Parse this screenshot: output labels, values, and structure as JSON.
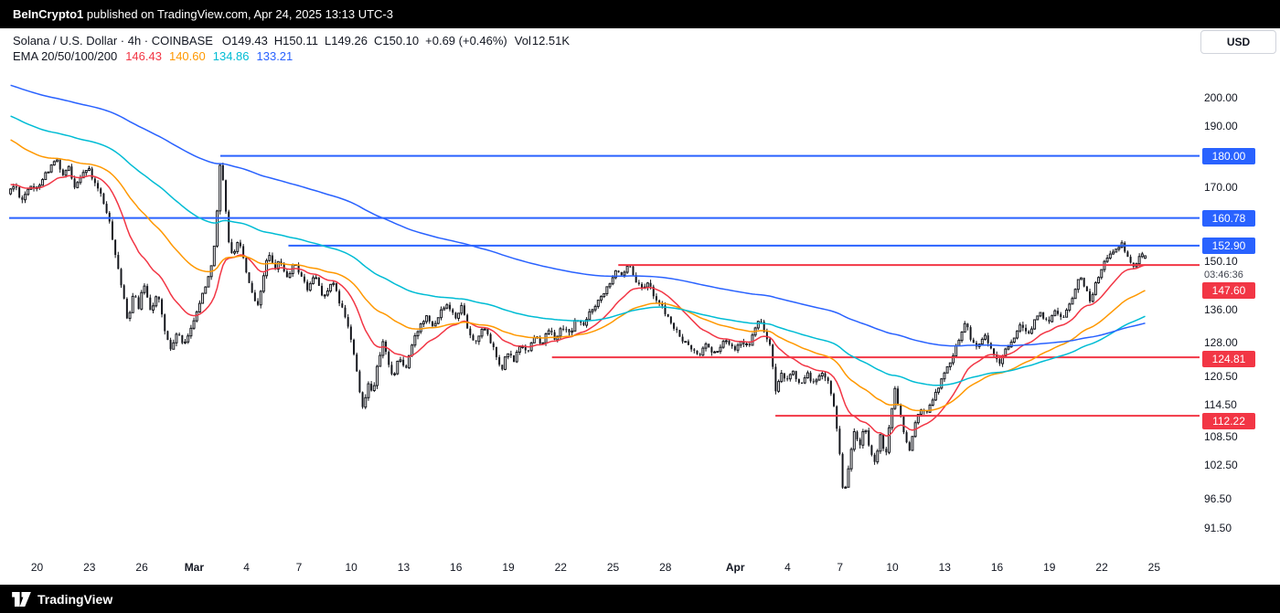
{
  "topbar": {
    "publisher": "BeInCrypto1",
    "suffix": " published on TradingView.com, Apr 24, 2025 13:13 UTC-3"
  },
  "legend": {
    "title_line": "Solana / U.S. Dollar · 4h · COINBASE",
    "ohlc_keys": [
      "O",
      "H",
      "L",
      "C"
    ],
    "change": "+0.69 (+0.46%)",
    "volume_label": "Vol",
    "volume": "12.51K",
    "ema_label": "EMA 20/50/100/200"
  },
  "axis": {
    "currency": "USD"
  },
  "footer": {
    "brand": "TradingView"
  },
  "chart_data": {
    "type": "candlestick",
    "symbol": "Solana / U.S. Dollar",
    "interval": "4h",
    "exchange": "COINBASE",
    "ohlc": {
      "open": 149.43,
      "high": 150.11,
      "low": 149.26,
      "close": 150.1
    },
    "volume": "12.51K",
    "last_price": 150.1,
    "countdown": "03:46:36",
    "y_axis": {
      "scale": "log",
      "range": [
        87.5,
        207.5
      ],
      "labels": [
        "200.00",
        "190.00",
        "170.00",
        "136.00",
        "128.00",
        "120.50",
        "114.50",
        "108.50",
        "102.50",
        "96.50",
        "91.50"
      ]
    },
    "x_axis": {
      "range": [
        -1.6,
        66.6
      ],
      "ticks": [
        {
          "d": 0,
          "label": "20"
        },
        {
          "d": 3,
          "label": "23"
        },
        {
          "d": 6,
          "label": "26"
        },
        {
          "d": 9,
          "label": "Mar",
          "bold": true
        },
        {
          "d": 12,
          "label": "4"
        },
        {
          "d": 15,
          "label": "7"
        },
        {
          "d": 18,
          "label": "10"
        },
        {
          "d": 21,
          "label": "13"
        },
        {
          "d": 24,
          "label": "16"
        },
        {
          "d": 27,
          "label": "19"
        },
        {
          "d": 30,
          "label": "22"
        },
        {
          "d": 33,
          "label": "25"
        },
        {
          "d": 36,
          "label": "28"
        },
        {
          "d": 40,
          "label": "Apr",
          "bold": true
        },
        {
          "d": 43,
          "label": "4"
        },
        {
          "d": 46,
          "label": "7"
        },
        {
          "d": 49,
          "label": "10"
        },
        {
          "d": 52,
          "label": "13"
        },
        {
          "d": 55,
          "label": "16"
        },
        {
          "d": 58,
          "label": "19"
        },
        {
          "d": 61,
          "label": "22"
        },
        {
          "d": 64,
          "label": "25"
        }
      ]
    },
    "emas": {
      "periods": [
        20,
        50,
        100,
        200
      ],
      "values": [
        146.43,
        140.6,
        134.86,
        133.21
      ],
      "colors": [
        "#f23645",
        "#ff9800",
        "#00bcd4",
        "#2962ff"
      ],
      "seeds": [
        171,
        186,
        194,
        205
      ]
    },
    "levels": [
      {
        "label": "180.00",
        "price": 180.0,
        "color": "#2962ff",
        "start_day": 10.5
      },
      {
        "label": "160.78",
        "price": 160.78,
        "color": "#2962ff",
        "start_day": -1.6
      },
      {
        "label": "152.90",
        "price": 152.9,
        "color": "#2962ff",
        "start_day": 14.4
      },
      {
        "label": "147.60",
        "price": 147.6,
        "color": "#f23645",
        "start_day": 33.3
      },
      {
        "label": "124.81",
        "price": 124.81,
        "color": "#f23645",
        "start_day": 29.5
      },
      {
        "label": "112.22",
        "price": 112.22,
        "color": "#f23645",
        "start_day": 42.3
      }
    ],
    "candles_per_day": 6,
    "price_path": [
      [
        -1.6,
        168
      ],
      [
        -1.2,
        171
      ],
      [
        -0.8,
        166
      ],
      [
        -0.4,
        170
      ],
      [
        0,
        169
      ],
      [
        0.4,
        173
      ],
      [
        0.8,
        176
      ],
      [
        1.2,
        179
      ],
      [
        1.5,
        173
      ],
      [
        1.9,
        176
      ],
      [
        2.2,
        170
      ],
      [
        2.6,
        174
      ],
      [
        3,
        176
      ],
      [
        3.4,
        171
      ],
      [
        3.8,
        167
      ],
      [
        4.2,
        160
      ],
      [
        4.6,
        150
      ],
      [
        5,
        140
      ],
      [
        5.3,
        132
      ],
      [
        5.6,
        141
      ],
      [
        5.9,
        136
      ],
      [
        6.2,
        143
      ],
      [
        6.6,
        136
      ],
      [
        7,
        140
      ],
      [
        7.4,
        131
      ],
      [
        7.8,
        126
      ],
      [
        8.1,
        131
      ],
      [
        8.5,
        127
      ],
      [
        9,
        133
      ],
      [
        9.5,
        139
      ],
      [
        10,
        146
      ],
      [
        10.3,
        155
      ],
      [
        10.6,
        179
      ],
      [
        10.8,
        168
      ],
      [
        11,
        156
      ],
      [
        11.3,
        149
      ],
      [
        11.6,
        155
      ],
      [
        12,
        147
      ],
      [
        12.4,
        140
      ],
      [
        12.7,
        136
      ],
      [
        13,
        143
      ],
      [
        13.3,
        151
      ],
      [
        13.7,
        146
      ],
      [
        14,
        149
      ],
      [
        14.4,
        144
      ],
      [
        14.8,
        148
      ],
      [
        15.2,
        145
      ],
      [
        15.6,
        141
      ],
      [
        16,
        145
      ],
      [
        16.5,
        139
      ],
      [
        17,
        143
      ],
      [
        17.5,
        137
      ],
      [
        17.9,
        132
      ],
      [
        18.3,
        124
      ],
      [
        18.6,
        116
      ],
      [
        18.8,
        113
      ],
      [
        19,
        120
      ],
      [
        19.3,
        117
      ],
      [
        19.6,
        123
      ],
      [
        19.9,
        128
      ],
      [
        20.2,
        124
      ],
      [
        20.5,
        120
      ],
      [
        20.8,
        125
      ],
      [
        21.2,
        122
      ],
      [
        21.6,
        128
      ],
      [
        22,
        132
      ],
      [
        22.4,
        135
      ],
      [
        22.8,
        132
      ],
      [
        23.2,
        136
      ],
      [
        23.6,
        138
      ],
      [
        24,
        134
      ],
      [
        24.4,
        137
      ],
      [
        24.8,
        131
      ],
      [
        25.2,
        128
      ],
      [
        25.6,
        132
      ],
      [
        26,
        129
      ],
      [
        26.4,
        125
      ],
      [
        26.7,
        121.5
      ],
      [
        27,
        126
      ],
      [
        27.4,
        124
      ],
      [
        27.8,
        128
      ],
      [
        28.2,
        126
      ],
      [
        28.6,
        130
      ],
      [
        29,
        128
      ],
      [
        29.4,
        131
      ],
      [
        29.8,
        129
      ],
      [
        30.2,
        132
      ],
      [
        30.6,
        130
      ],
      [
        31,
        134
      ],
      [
        31.4,
        132
      ],
      [
        31.8,
        136
      ],
      [
        32.2,
        138
      ],
      [
        32.6,
        141
      ],
      [
        33,
        144
      ],
      [
        33.3,
        147
      ],
      [
        33.6,
        144
      ],
      [
        34,
        147.5
      ],
      [
        34.3,
        144
      ],
      [
        34.7,
        141
      ],
      [
        35.1,
        143
      ],
      [
        35.5,
        139
      ],
      [
        36,
        136
      ],
      [
        36.5,
        132
      ],
      [
        37,
        129
      ],
      [
        37.5,
        127
      ],
      [
        38,
        125
      ],
      [
        38.4,
        128
      ],
      [
        38.8,
        125.5
      ],
      [
        39.2,
        127
      ],
      [
        39.6,
        129
      ],
      [
        40,
        126.5
      ],
      [
        40.4,
        129
      ],
      [
        40.8,
        127
      ],
      [
        41.2,
        131
      ],
      [
        41.5,
        134
      ],
      [
        41.8,
        130
      ],
      [
        42.1,
        127
      ],
      [
        42.4,
        117
      ],
      [
        42.7,
        121
      ],
      [
        43,
        119
      ],
      [
        43.4,
        122
      ],
      [
        43.8,
        118
      ],
      [
        44.2,
        121
      ],
      [
        44.6,
        119
      ],
      [
        45,
        121
      ],
      [
        45.4,
        119.5
      ],
      [
        45.8,
        113
      ],
      [
        46.1,
        104
      ],
      [
        46.3,
        96
      ],
      [
        46.6,
        103
      ],
      [
        46.9,
        109
      ],
      [
        47.2,
        106
      ],
      [
        47.5,
        110
      ],
      [
        47.8,
        105
      ],
      [
        48.1,
        102.5
      ],
      [
        48.4,
        108
      ],
      [
        48.7,
        104
      ],
      [
        49,
        112
      ],
      [
        49.2,
        118
      ],
      [
        49.5,
        113
      ],
      [
        49.8,
        108
      ],
      [
        50.1,
        105
      ],
      [
        50.4,
        111
      ],
      [
        50.7,
        114
      ],
      [
        51,
        112
      ],
      [
        51.4,
        116
      ],
      [
        51.8,
        119
      ],
      [
        52.2,
        122
      ],
      [
        52.6,
        126
      ],
      [
        53,
        130
      ],
      [
        53.3,
        133
      ],
      [
        53.6,
        129
      ],
      [
        54,
        127
      ],
      [
        54.4,
        129.5
      ],
      [
        54.8,
        126
      ],
      [
        55.2,
        123
      ],
      [
        55.6,
        127
      ],
      [
        56,
        129
      ],
      [
        56.4,
        132
      ],
      [
        56.8,
        130
      ],
      [
        57.2,
        133
      ],
      [
        57.6,
        135
      ],
      [
        58,
        133
      ],
      [
        58.4,
        136
      ],
      [
        58.8,
        134
      ],
      [
        59.2,
        137
      ],
      [
        59.5,
        140
      ],
      [
        59.8,
        145
      ],
      [
        60.1,
        142
      ],
      [
        60.4,
        138.5
      ],
      [
        60.7,
        142
      ],
      [
        61,
        146
      ],
      [
        61.3,
        149
      ],
      [
        61.6,
        151
      ],
      [
        62,
        152
      ],
      [
        62.2,
        153.5
      ],
      [
        62.5,
        150
      ],
      [
        62.8,
        147
      ],
      [
        63.1,
        148.5
      ],
      [
        63.3,
        150.5
      ],
      [
        63.54,
        150.1
      ]
    ]
  }
}
